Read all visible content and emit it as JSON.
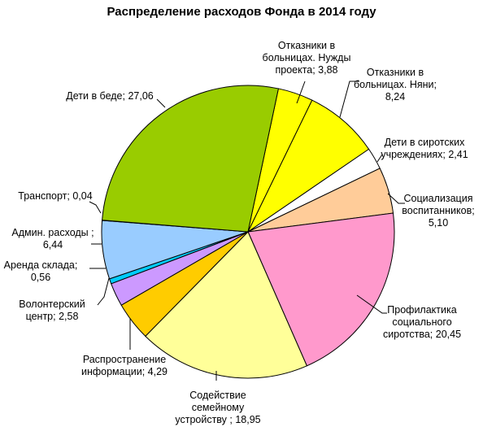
{
  "chart_data": {
    "type": "pie",
    "title": "Распределение расходов Фонда в 2014 году",
    "slices": [
      {
        "label": [
          "Отказники в",
          "больницах. Нужды",
          "проекта; 3,88"
        ],
        "value": 3.88,
        "color": "#ffff00"
      },
      {
        "label": [
          "Отказники в",
          "больницах. Няни;",
          "8,24"
        ],
        "value": 8.24,
        "color": "#ffff00"
      },
      {
        "label": [
          "Дети в сиротских",
          "учреждениях; 2,41"
        ],
        "value": 2.41,
        "color": "#ffffff"
      },
      {
        "label": [
          "Социализация",
          "воспитанников;",
          "5,10"
        ],
        "value": 5.1,
        "color": "#ffcc99"
      },
      {
        "label": [
          "Профилактика",
          "социального",
          "сиротства; 20,45"
        ],
        "value": 20.45,
        "color": "#ff99cc"
      },
      {
        "label": [
          "Содействие",
          "семейному",
          "устройству ; 18,95"
        ],
        "value": 18.95,
        "color": "#ffff99"
      },
      {
        "label": [
          "Распространение",
          "информации; 4,29"
        ],
        "value": 4.29,
        "color": "#ffcc00"
      },
      {
        "label": [
          "Волонтерский",
          "центр; 2,58"
        ],
        "value": 2.58,
        "color": "#cc99ff"
      },
      {
        "label": [
          "Аренда склада;",
          "0,56"
        ],
        "value": 0.56,
        "color": "#00ccff"
      },
      {
        "label": [
          "Админ. расходы ;",
          "6,44"
        ],
        "value": 6.44,
        "color": "#99ccff"
      },
      {
        "label": [
          "Транспорт; 0,04"
        ],
        "value": 0.04,
        "color": "#333399"
      },
      {
        "label": [
          "Дети в беде; 27,06"
        ],
        "value": 27.06,
        "color": "#99cc00"
      }
    ]
  }
}
